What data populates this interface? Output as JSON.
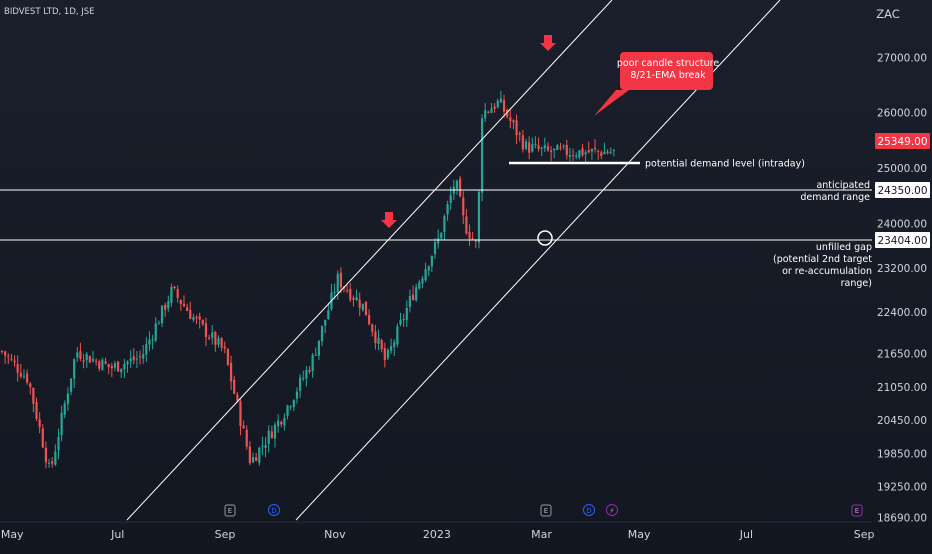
{
  "header": {
    "symbol_line": "BIDVEST LTD, 1D, JSE",
    "currency": "ZAC"
  },
  "colors": {
    "up": "#26a69a",
    "down": "#ef5350",
    "background": "#131722",
    "line": "#ffffff",
    "annotation_red": "#f23645",
    "badge_blue": "#2962ff",
    "badge_purple": "#9c27b0",
    "axis_text": "#d1d4dc"
  },
  "chart_data": {
    "type": "candlestick",
    "title": "",
    "xlabel": "",
    "ylabel": "",
    "x_tick_labels": [
      "May",
      "Jul",
      "Sep",
      "Nov",
      "2023",
      "Mar",
      "May",
      "Jul",
      "Sep"
    ],
    "y_tick_labels": [
      "27000.00",
      "26000.00",
      "25000.00",
      "24000.00",
      "23200.00",
      "22400.00",
      "21650.00",
      "21050.00",
      "20450.00",
      "19850.00",
      "19250.00",
      "18690.00"
    ],
    "ylim": [
      18690,
      27900
    ],
    "current_price": "25349.00",
    "horizontal_levels": [
      {
        "price": "24350.00",
        "label": [
          "anticipated",
          "demand range"
        ]
      },
      {
        "price": "23404.00",
        "label": [
          "unfilled gap",
          "(potential 2nd target",
          "or re-accumulation",
          "range)"
        ]
      }
    ],
    "demand_level": {
      "price": 24880,
      "label": "potential demand level (intraday)"
    },
    "callout": [
      "poor candle structure",
      "8/21-EMA break"
    ],
    "event_badges": [
      "E",
      "D",
      "E",
      "D",
      "⚡",
      "E"
    ],
    "candle_samples": [
      {
        "x": 0.0,
        "close": 21700
      },
      {
        "x": 0.03,
        "close": 21200
      },
      {
        "x": 0.055,
        "close": 19500
      },
      {
        "x": 0.085,
        "close": 21700
      },
      {
        "x": 0.125,
        "close": 21400
      },
      {
        "x": 0.16,
        "close": 21600
      },
      {
        "x": 0.195,
        "close": 22800
      },
      {
        "x": 0.225,
        "close": 22200
      },
      {
        "x": 0.255,
        "close": 21700
      },
      {
        "x": 0.285,
        "close": 19700
      },
      {
        "x": 0.32,
        "close": 20500
      },
      {
        "x": 0.355,
        "close": 21500
      },
      {
        "x": 0.385,
        "close": 23000
      },
      {
        "x": 0.415,
        "close": 22500
      },
      {
        "x": 0.44,
        "close": 21500
      },
      {
        "x": 0.47,
        "close": 22700
      },
      {
        "x": 0.5,
        "close": 23700
      },
      {
        "x": 0.52,
        "close": 24800
      },
      {
        "x": 0.53,
        "close": 24000
      },
      {
        "x": 0.545,
        "close": 23600
      },
      {
        "x": 0.55,
        "close": 26000
      },
      {
        "x": 0.57,
        "close": 26200
      },
      {
        "x": 0.6,
        "close": 25400
      },
      {
        "x": 0.625,
        "close": 25300
      }
    ]
  }
}
